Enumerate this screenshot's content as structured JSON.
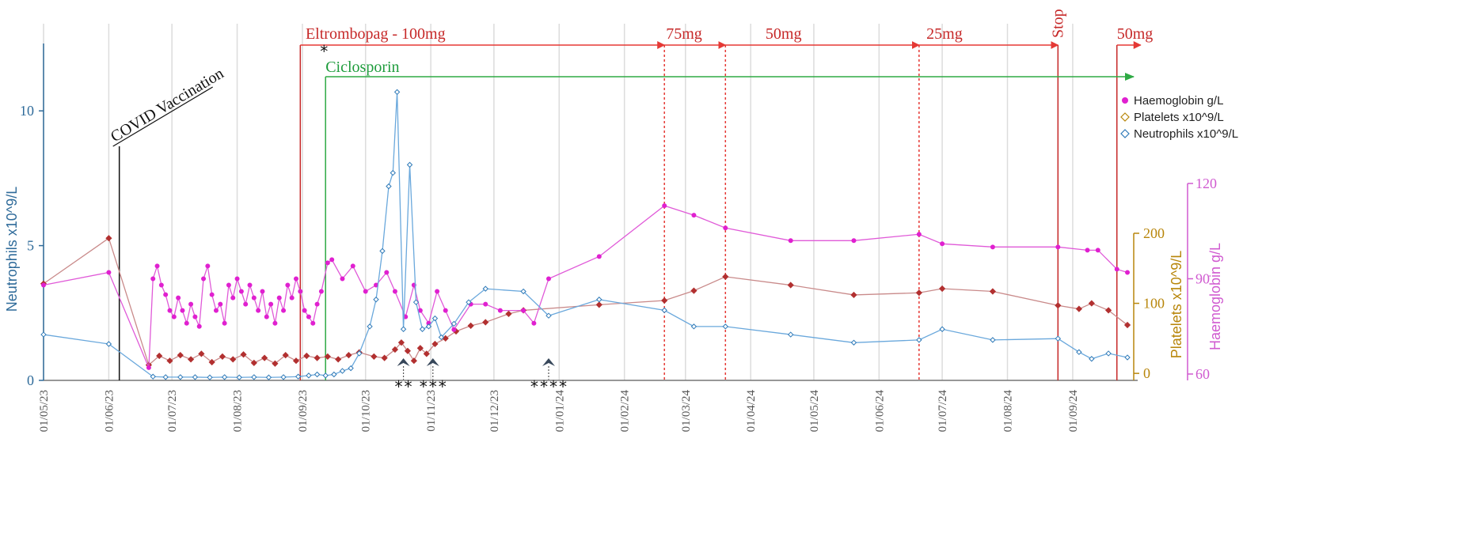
{
  "chart_data": {
    "type": "line",
    "title": "",
    "xlabel": "",
    "x_ticks": [
      {
        "date": "2023-05-01",
        "label": "01/05/23"
      },
      {
        "date": "2023-06-01",
        "label": "01/06/23"
      },
      {
        "date": "2023-07-01",
        "label": "01/07/23"
      },
      {
        "date": "2023-08-01",
        "label": "01/08/23"
      },
      {
        "date": "2023-09-01",
        "label": "01/09/23"
      },
      {
        "date": "2023-10-01",
        "label": "01/10/23"
      },
      {
        "date": "2023-11-01",
        "label": "01/11/23"
      },
      {
        "date": "2023-12-01",
        "label": "01/12/23"
      },
      {
        "date": "2024-01-01",
        "label": "01/01/24"
      },
      {
        "date": "2024-02-01",
        "label": "01/02/24"
      },
      {
        "date": "2024-03-01",
        "label": "01/03/24"
      },
      {
        "date": "2024-04-01",
        "label": "01/04/24"
      },
      {
        "date": "2024-05-01",
        "label": "01/05/24"
      },
      {
        "date": "2024-06-01",
        "label": "01/06/24"
      },
      {
        "date": "2024-07-01",
        "label": "01/07/24"
      },
      {
        "date": "2024-08-01",
        "label": "01/08/24"
      },
      {
        "date": "2024-09-01",
        "label": "01/09/24"
      }
    ],
    "xlim": [
      "2023-05-01",
      "2024-09-30"
    ],
    "axes": {
      "neutrophils": {
        "label": "Neutrophils x10^9/L",
        "ylim": [
          0,
          12.5
        ],
        "ticks": [
          {
            "v": 0,
            "label": "0"
          },
          {
            "v": 5,
            "label": "5"
          },
          {
            "v": 10,
            "label": "10"
          }
        ],
        "color": "#2f6b9a"
      },
      "platelets": {
        "label": "Platelets x10^9/L",
        "ylim": [
          -10,
          200
        ],
        "ticks": [
          {
            "v": 0,
            "label": "0"
          },
          {
            "v": 100,
            "label": "100"
          },
          {
            "v": 200,
            "label": "200"
          }
        ],
        "color": "#b8860b"
      },
      "haemoglobin": {
        "label": "Haemoglobin g/L",
        "ylim": [
          58,
          120
        ],
        "ticks": [
          {
            "v": 60,
            "label": "60"
          },
          {
            "v": 90,
            "label": "90"
          },
          {
            "v": 120,
            "label": "120"
          }
        ],
        "color": "#d05ad0"
      }
    },
    "legend_position": "top-right",
    "series": [
      {
        "name": "Haemoglobin g/L",
        "axis": "haemoglobin",
        "marker": "circle",
        "color": "#e040d8",
        "points": [
          [
            "2023-05-01",
            88
          ],
          [
            "2023-06-01",
            92
          ],
          [
            "2023-06-20",
            62
          ],
          [
            "2023-06-22",
            90
          ],
          [
            "2023-06-24",
            94
          ],
          [
            "2023-06-26",
            88
          ],
          [
            "2023-06-28",
            85
          ],
          [
            "2023-06-30",
            80
          ],
          [
            "2023-07-02",
            78
          ],
          [
            "2023-07-04",
            84
          ],
          [
            "2023-07-06",
            80
          ],
          [
            "2023-07-08",
            76
          ],
          [
            "2023-07-10",
            82
          ],
          [
            "2023-07-12",
            78
          ],
          [
            "2023-07-14",
            75
          ],
          [
            "2023-07-16",
            90
          ],
          [
            "2023-07-18",
            94
          ],
          [
            "2023-07-20",
            85
          ],
          [
            "2023-07-22",
            80
          ],
          [
            "2023-07-24",
            82
          ],
          [
            "2023-07-26",
            76
          ],
          [
            "2023-07-28",
            88
          ],
          [
            "2023-07-30",
            84
          ],
          [
            "2023-08-01",
            90
          ],
          [
            "2023-08-03",
            86
          ],
          [
            "2023-08-05",
            82
          ],
          [
            "2023-08-07",
            88
          ],
          [
            "2023-08-09",
            84
          ],
          [
            "2023-08-11",
            80
          ],
          [
            "2023-08-13",
            86
          ],
          [
            "2023-08-15",
            78
          ],
          [
            "2023-08-17",
            82
          ],
          [
            "2023-08-19",
            76
          ],
          [
            "2023-08-21",
            84
          ],
          [
            "2023-08-23",
            80
          ],
          [
            "2023-08-25",
            88
          ],
          [
            "2023-08-27",
            84
          ],
          [
            "2023-08-29",
            90
          ],
          [
            "2023-08-31",
            86
          ],
          [
            "2023-09-02",
            80
          ],
          [
            "2023-09-04",
            78
          ],
          [
            "2023-09-06",
            76
          ],
          [
            "2023-09-08",
            82
          ],
          [
            "2023-09-10",
            86
          ],
          [
            "2023-09-13",
            95
          ],
          [
            "2023-09-15",
            96
          ],
          [
            "2023-09-20",
            90
          ],
          [
            "2023-09-25",
            94
          ],
          [
            "2023-10-01",
            86
          ],
          [
            "2023-10-06",
            88
          ],
          [
            "2023-10-11",
            92
          ],
          [
            "2023-10-15",
            86
          ],
          [
            "2023-10-20",
            78
          ],
          [
            "2023-10-24",
            88
          ],
          [
            "2023-10-27",
            80
          ],
          [
            "2023-10-31",
            76
          ],
          [
            "2023-11-04",
            86
          ],
          [
            "2023-11-08",
            80
          ],
          [
            "2023-11-12",
            74
          ],
          [
            "2023-11-20",
            82
          ],
          [
            "2023-11-27",
            82
          ],
          [
            "2023-12-04",
            80
          ],
          [
            "2023-12-15",
            80
          ],
          [
            "2023-12-20",
            76
          ],
          [
            "2023-12-27",
            90
          ],
          [
            "2024-01-20",
            97
          ],
          [
            "2024-02-20",
            113
          ],
          [
            "2024-03-05",
            110
          ],
          [
            "2024-03-20",
            106
          ],
          [
            "2024-04-20",
            102
          ],
          [
            "2024-05-20",
            102
          ],
          [
            "2024-06-20",
            104
          ],
          [
            "2024-07-01",
            101
          ],
          [
            "2024-07-25",
            100
          ],
          [
            "2024-08-25",
            100
          ],
          [
            "2024-09-08",
            99
          ],
          [
            "2024-09-13",
            99
          ],
          [
            "2024-09-22",
            93
          ],
          [
            "2024-09-27",
            92
          ]
        ]
      },
      {
        "name": "Platelets x10^9/L",
        "axis": "platelets",
        "marker": "diamond",
        "color": "#b03a3a",
        "points": [
          [
            "2023-05-01",
            128
          ],
          [
            "2023-06-01",
            193
          ],
          [
            "2023-06-20",
            12
          ],
          [
            "2023-06-25",
            25
          ],
          [
            "2023-06-30",
            18
          ],
          [
            "2023-07-05",
            26
          ],
          [
            "2023-07-10",
            20
          ],
          [
            "2023-07-15",
            28
          ],
          [
            "2023-07-20",
            16
          ],
          [
            "2023-07-25",
            24
          ],
          [
            "2023-07-30",
            20
          ],
          [
            "2023-08-04",
            27
          ],
          [
            "2023-08-09",
            15
          ],
          [
            "2023-08-14",
            22
          ],
          [
            "2023-08-19",
            14
          ],
          [
            "2023-08-24",
            26
          ],
          [
            "2023-08-29",
            18
          ],
          [
            "2023-09-03",
            25
          ],
          [
            "2023-09-08",
            22
          ],
          [
            "2023-09-13",
            24
          ],
          [
            "2023-09-18",
            20
          ],
          [
            "2023-09-23",
            26
          ],
          [
            "2023-09-28",
            30
          ],
          [
            "2023-10-05",
            24
          ],
          [
            "2023-10-10",
            22
          ],
          [
            "2023-10-15",
            34
          ],
          [
            "2023-10-18",
            44
          ],
          [
            "2023-10-21",
            32
          ],
          [
            "2023-10-24",
            18
          ],
          [
            "2023-10-27",
            36
          ],
          [
            "2023-10-30",
            28
          ],
          [
            "2023-11-03",
            42
          ],
          [
            "2023-11-08",
            50
          ],
          [
            "2023-11-13",
            60
          ],
          [
            "2023-11-20",
            68
          ],
          [
            "2023-11-27",
            73
          ],
          [
            "2023-12-08",
            85
          ],
          [
            "2023-12-15",
            90
          ],
          [
            "2024-01-20",
            98
          ],
          [
            "2024-02-20",
            104
          ],
          [
            "2024-03-05",
            118
          ],
          [
            "2024-03-20",
            138
          ],
          [
            "2024-04-20",
            126
          ],
          [
            "2024-05-20",
            112
          ],
          [
            "2024-06-20",
            115
          ],
          [
            "2024-07-01",
            121
          ],
          [
            "2024-07-25",
            117
          ],
          [
            "2024-08-25",
            97
          ],
          [
            "2024-09-04",
            92
          ],
          [
            "2024-09-10",
            100
          ],
          [
            "2024-09-18",
            90
          ],
          [
            "2024-09-27",
            69
          ]
        ]
      },
      {
        "name": "Neutrophils x10^9/L",
        "axis": "neutrophils",
        "marker": "diamond",
        "color": "#5a9ed6",
        "points": [
          [
            "2023-05-01",
            1.7
          ],
          [
            "2023-06-01",
            1.35
          ],
          [
            "2023-06-22",
            0.14
          ],
          [
            "2023-06-28",
            0.12
          ],
          [
            "2023-07-05",
            0.12
          ],
          [
            "2023-07-12",
            0.12
          ],
          [
            "2023-07-19",
            0.11
          ],
          [
            "2023-07-26",
            0.12
          ],
          [
            "2023-08-02",
            0.11
          ],
          [
            "2023-08-09",
            0.12
          ],
          [
            "2023-08-16",
            0.11
          ],
          [
            "2023-08-23",
            0.12
          ],
          [
            "2023-08-30",
            0.14
          ],
          [
            "2023-09-04",
            0.18
          ],
          [
            "2023-09-08",
            0.22
          ],
          [
            "2023-09-12",
            0.18
          ],
          [
            "2023-09-16",
            0.22
          ],
          [
            "2023-09-20",
            0.35
          ],
          [
            "2023-09-24",
            0.45
          ],
          [
            "2023-09-28",
            1.0
          ],
          [
            "2023-10-03",
            2.0
          ],
          [
            "2023-10-06",
            3.0
          ],
          [
            "2023-10-09",
            4.8
          ],
          [
            "2023-10-12",
            7.2
          ],
          [
            "2023-10-14",
            7.7
          ],
          [
            "2023-10-16",
            10.7
          ],
          [
            "2023-10-19",
            1.9
          ],
          [
            "2023-10-22",
            8.0
          ],
          [
            "2023-10-25",
            2.9
          ],
          [
            "2023-10-28",
            1.9
          ],
          [
            "2023-10-31",
            2.0
          ],
          [
            "2023-11-03",
            2.3
          ],
          [
            "2023-11-06",
            1.6
          ],
          [
            "2023-11-12",
            2.1
          ],
          [
            "2023-11-19",
            2.9
          ],
          [
            "2023-11-27",
            3.4
          ],
          [
            "2023-12-15",
            3.3
          ],
          [
            "2023-12-27",
            2.4
          ],
          [
            "2024-01-20",
            3.0
          ],
          [
            "2024-02-20",
            2.6
          ],
          [
            "2024-03-05",
            2.0
          ],
          [
            "2024-03-20",
            2.0
          ],
          [
            "2024-04-20",
            1.7
          ],
          [
            "2024-05-20",
            1.4
          ],
          [
            "2024-06-20",
            1.5
          ],
          [
            "2024-07-01",
            1.9
          ],
          [
            "2024-07-25",
            1.5
          ],
          [
            "2024-08-25",
            1.55
          ],
          [
            "2024-09-04",
            1.05
          ],
          [
            "2024-09-10",
            0.8
          ],
          [
            "2024-09-18",
            1.0
          ],
          [
            "2024-09-27",
            0.85
          ]
        ]
      }
    ],
    "annotations": {
      "vertical_lines": [
        {
          "date": "2023-06-06",
          "style": "solid",
          "color": "#111111",
          "label": "COVID Vaccination"
        },
        {
          "date": "2023-08-31",
          "style": "solid",
          "color": "#c62828"
        },
        {
          "date": "2023-09-12",
          "style": "solid",
          "color": "#1e9c3c"
        },
        {
          "date": "2024-02-20",
          "style": "dotted",
          "color": "#e53935"
        },
        {
          "date": "2024-03-20",
          "style": "dotted",
          "color": "#e53935"
        },
        {
          "date": "2024-06-20",
          "style": "dotted",
          "color": "#e53935"
        },
        {
          "date": "2024-08-25",
          "style": "solid",
          "color": "#c62828"
        },
        {
          "date": "2024-09-22",
          "style": "solid",
          "color": "#c62828"
        }
      ],
      "dose_labels": [
        {
          "date": "2023-09-01",
          "text": "Eltrombopag  - 100mg"
        },
        {
          "date": "2024-02-20",
          "text": "75mg"
        },
        {
          "date": "2024-03-24",
          "text": "50mg"
        },
        {
          "date": "2024-06-22",
          "text": "25mg"
        },
        {
          "date": "2024-08-25",
          "text": "Stop"
        },
        {
          "date": "2024-09-22",
          "text": "50mg"
        }
      ],
      "ciclosporin_label": "Ciclosporin",
      "star_markers": [
        {
          "date": "2023-09-12",
          "text": "*"
        },
        {
          "date": "2023-10-19",
          "text": "**"
        },
        {
          "date": "2023-11-02",
          "text": "***"
        },
        {
          "date": "2023-12-27",
          "text": "****"
        }
      ]
    }
  }
}
